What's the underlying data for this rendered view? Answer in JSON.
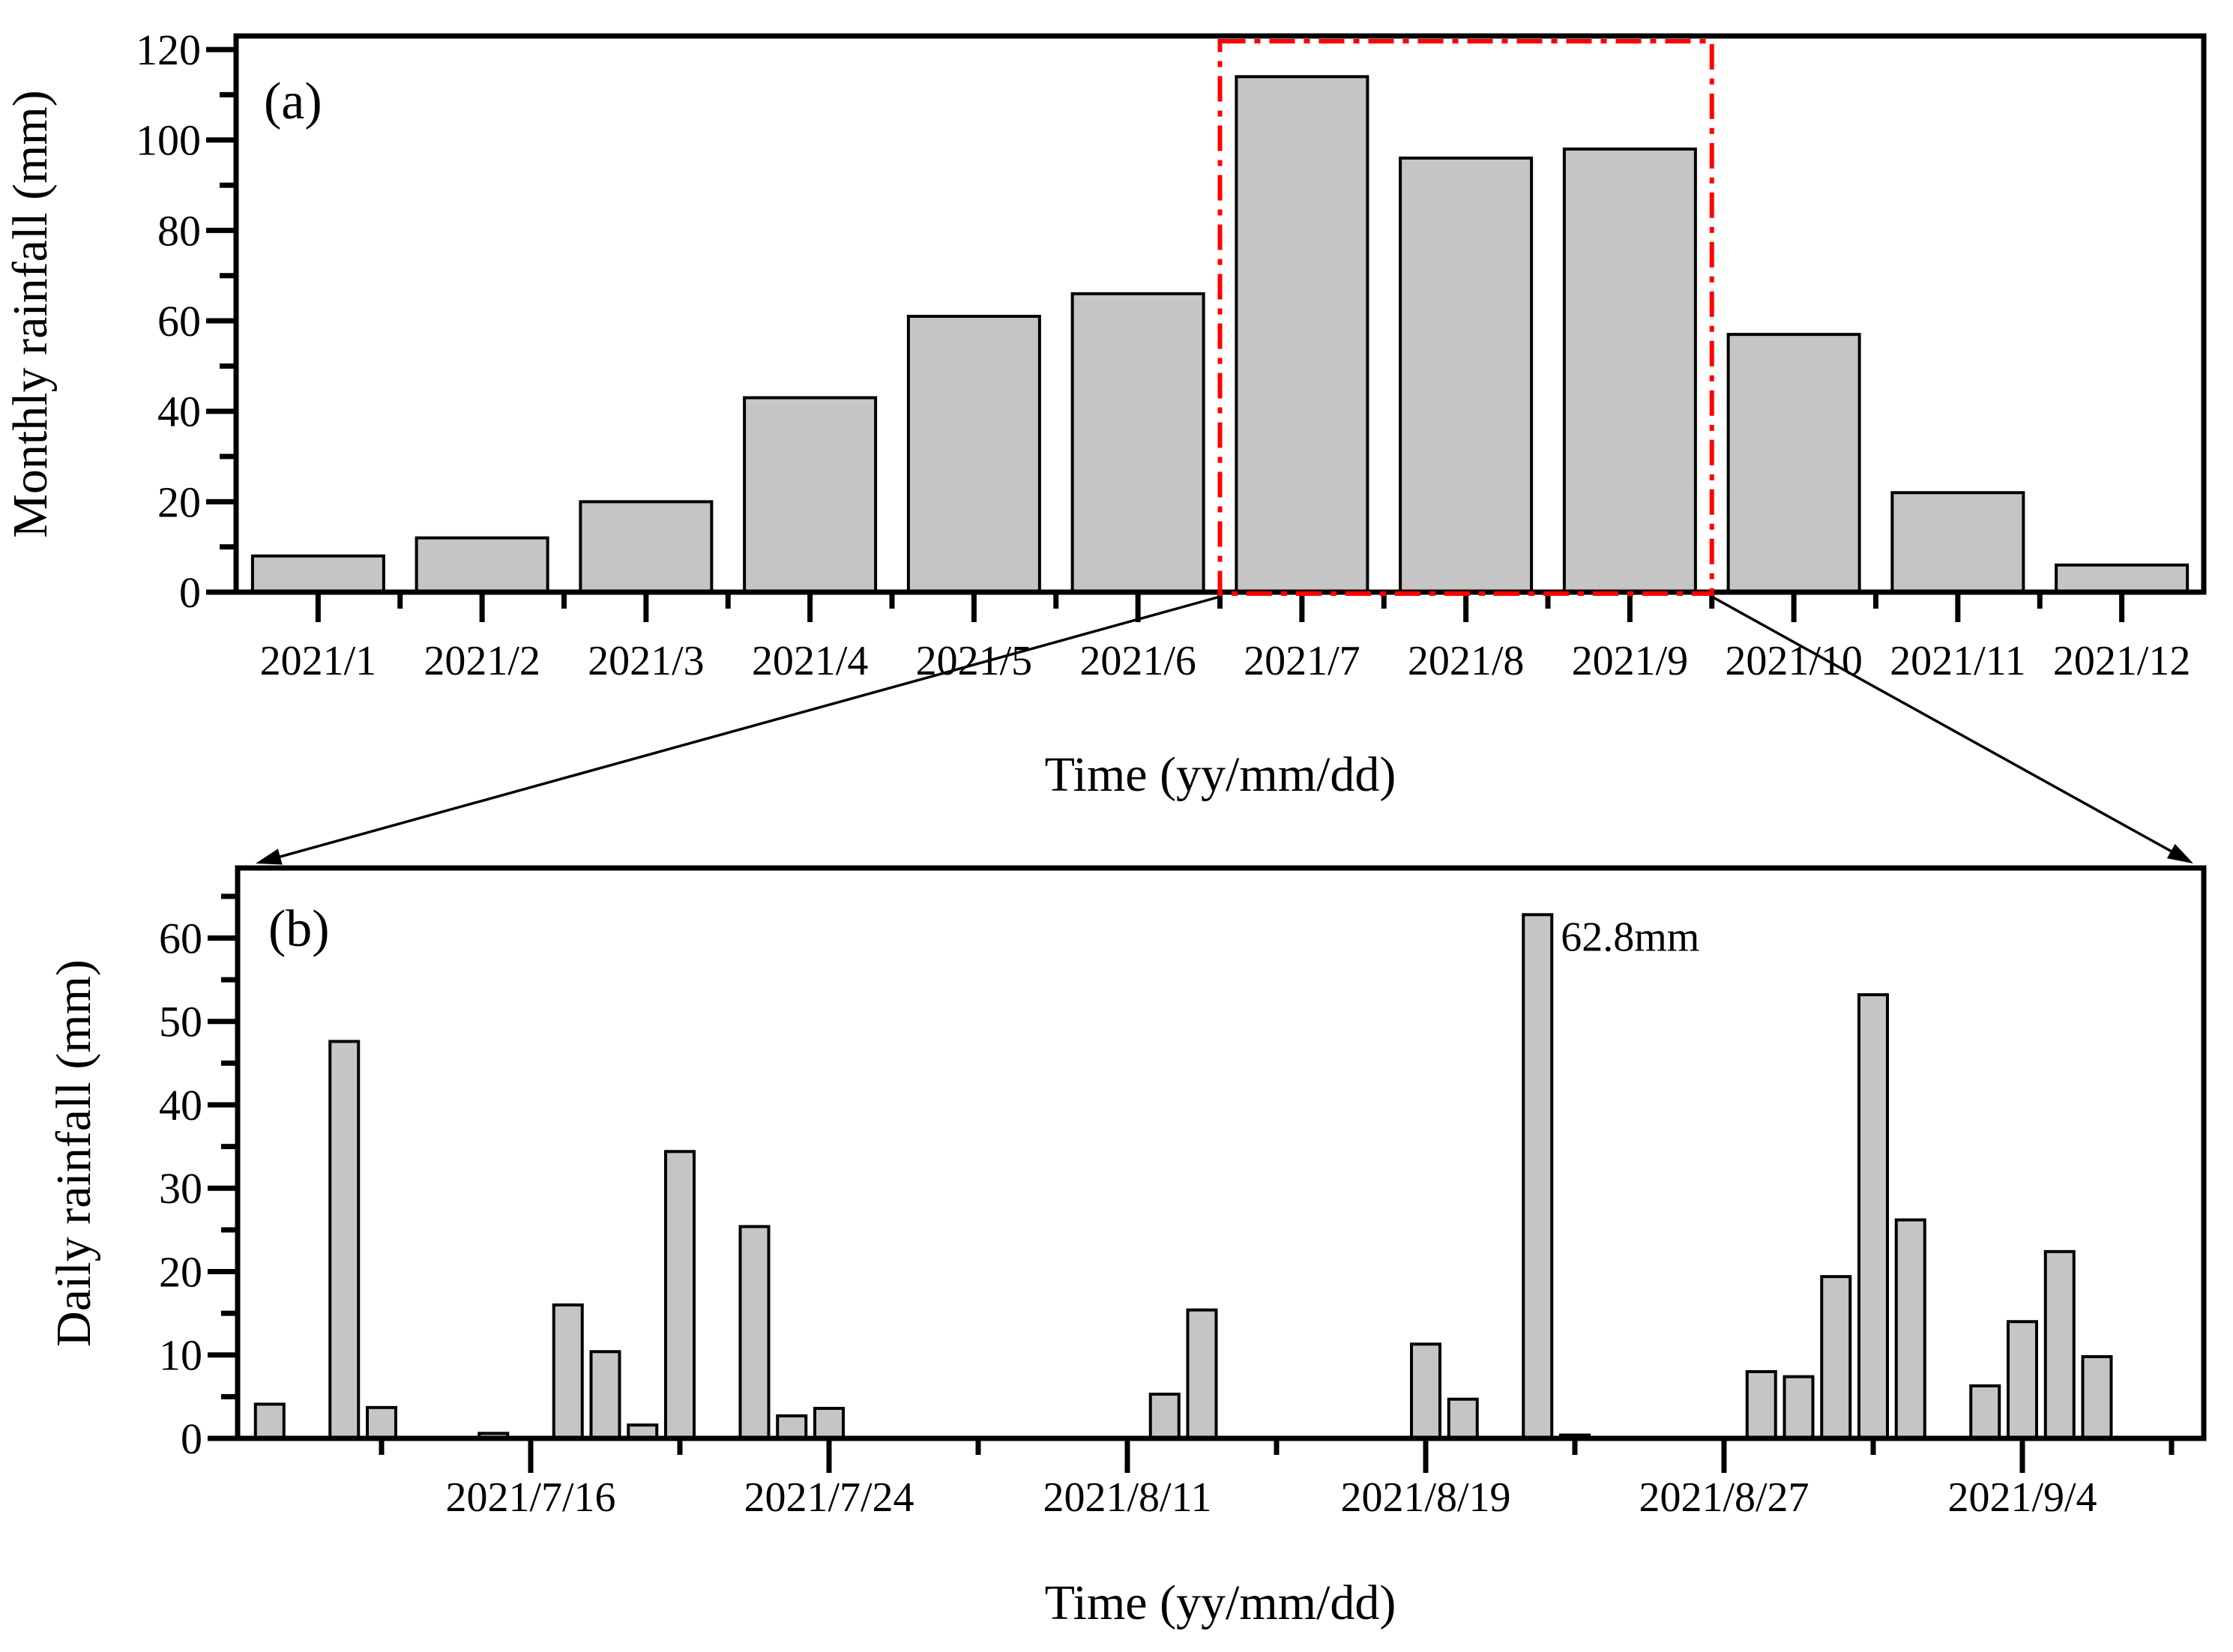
{
  "figure": {
    "background": "#ffffff",
    "bar_fill": "#c5c5c5",
    "bar_stroke": "#000000",
    "axis_color": "#000000",
    "highlight_color": "#ff0000"
  },
  "chart_data": [
    {
      "id": "panel-a",
      "type": "bar",
      "panel_label": "(a)",
      "xlabel": "Time (yy/mm/dd)",
      "ylabel": "Monthly rainfall (mm)",
      "ylim": [
        0,
        123
      ],
      "ytick_major_values": [
        0,
        20,
        40,
        60,
        80,
        100,
        120
      ],
      "ytick_labels": [
        "0",
        "20",
        "40",
        "60",
        "80",
        "100",
        "120"
      ],
      "ytick_minor_values": [
        10,
        30,
        50,
        70,
        90,
        110
      ],
      "grid": "off",
      "categories": [
        "2021/1",
        "2021/2",
        "2021/3",
        "2021/4",
        "2021/5",
        "2021/6",
        "2021/7",
        "2021/8",
        "2021/9",
        "2021/10",
        "2021/11",
        "2021/12"
      ],
      "values": [
        8,
        12,
        20,
        43,
        61,
        66,
        114,
        96,
        98,
        57,
        22,
        6
      ],
      "highlight_box": {
        "start_category": "2021/7",
        "end_category": "2021/9",
        "style": "red dash-dot rectangle",
        "links_to": "panel-b"
      }
    },
    {
      "id": "panel-b",
      "type": "bar",
      "panel_label": "(b)",
      "xlabel": "Time (yy/mm/dd)",
      "ylabel": "Daily rainfall (mm)",
      "ylim": [
        0,
        68
      ],
      "ytick_major_values": [
        0,
        10,
        20,
        30,
        40,
        50,
        60
      ],
      "ytick_labels": [
        "0",
        "10",
        "20",
        "30",
        "40",
        "50",
        "60"
      ],
      "ytick_minor_values": [
        5,
        15,
        25,
        35,
        45,
        55,
        65
      ],
      "grid": "off",
      "slot_range": [
        -7.9,
        44.9
      ],
      "xticks_major": [
        {
          "slot": 0,
          "label": "2021/7/16"
        },
        {
          "slot": 8,
          "label": "2021/7/24"
        },
        {
          "slot": 16,
          "label": "2021/8/11"
        },
        {
          "slot": 24,
          "label": "2021/8/19"
        },
        {
          "slot": 32,
          "label": "2021/8/27"
        },
        {
          "slot": 40,
          "label": "2021/9/4"
        }
      ],
      "xtick_minor_slots": [
        -4,
        4,
        12,
        20,
        28,
        36,
        44
      ],
      "bars": [
        {
          "slot": -7,
          "value": 4.1
        },
        {
          "slot": -5,
          "value": 47.6
        },
        {
          "slot": -4,
          "value": 3.7
        },
        {
          "slot": -1,
          "value": 0.6
        },
        {
          "slot": 1,
          "value": 16.0
        },
        {
          "slot": 2,
          "value": 10.4
        },
        {
          "slot": 3,
          "value": 1.6
        },
        {
          "slot": 4,
          "value": 34.4
        },
        {
          "slot": 6,
          "value": 25.4
        },
        {
          "slot": 7,
          "value": 2.7
        },
        {
          "slot": 8,
          "value": 3.6
        },
        {
          "slot": 17,
          "value": 5.3
        },
        {
          "slot": 18,
          "value": 15.4
        },
        {
          "slot": 24,
          "value": 11.3
        },
        {
          "slot": 25,
          "value": 4.7
        },
        {
          "slot": 27,
          "value": 62.8
        },
        {
          "slot": 28,
          "value": 0.4
        },
        {
          "slot": 33,
          "value": 8.0
        },
        {
          "slot": 34,
          "value": 7.4
        },
        {
          "slot": 35,
          "value": 19.4
        },
        {
          "slot": 36,
          "value": 53.2
        },
        {
          "slot": 37,
          "value": 26.2
        },
        {
          "slot": 39,
          "value": 6.3
        },
        {
          "slot": 40,
          "value": 14.0
        },
        {
          "slot": 41,
          "value": 22.4
        },
        {
          "slot": 42,
          "value": 9.8
        }
      ],
      "annotation": {
        "text": "62.8mm",
        "bar_slot": 27,
        "value": 62.8
      }
    }
  ]
}
